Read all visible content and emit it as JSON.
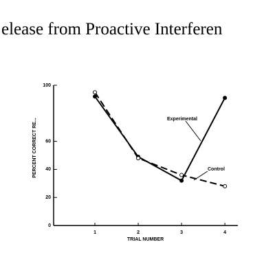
{
  "chart_data": {
    "type": "line",
    "title": "elease from Proactive Interferen",
    "x_label": "TRIAL NUMBER",
    "y_label": "PERCENT CORRECT RE...",
    "x": [
      1,
      2,
      3,
      4
    ],
    "series": [
      {
        "name": "Experimental",
        "color": "#000000",
        "marker": "filled",
        "dashed": false,
        "values": [
          92,
          49,
          32,
          91
        ]
      },
      {
        "name": "Control",
        "color": "#000000",
        "marker": "open",
        "dashed": true,
        "values": [
          95,
          48,
          36,
          28
        ]
      }
    ],
    "xlim": [
      0,
      4.3
    ],
    "ylim": [
      0,
      100
    ],
    "xticks": [
      1,
      2,
      3,
      4
    ],
    "yticks": [
      0,
      20,
      40,
      60,
      100
    ]
  }
}
